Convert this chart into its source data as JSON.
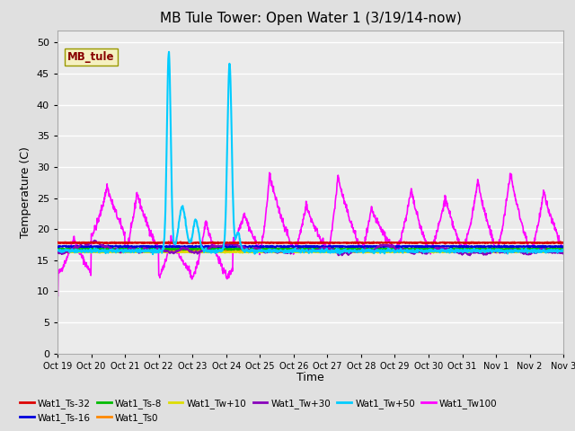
{
  "title": "MB Tule Tower: Open Water 1 (3/19/14-now)",
  "xlabel": "Time",
  "ylabel": "Temperature (C)",
  "ylim": [
    0,
    52
  ],
  "yticks": [
    0,
    5,
    10,
    15,
    20,
    25,
    30,
    35,
    40,
    45,
    50
  ],
  "bg_color": "#e0e0e0",
  "plot_bg": "#ebebeb",
  "legend_label": "MB_tule",
  "series": {
    "Wat1_Ts-32": {
      "color": "#dd0000",
      "lw": 1.5
    },
    "Wat1_Ts-16": {
      "color": "#0000dd",
      "lw": 1.5
    },
    "Wat1_Ts-8": {
      "color": "#00bb00",
      "lw": 1.5
    },
    "Wat1_Ts0": {
      "color": "#ff8800",
      "lw": 1.5
    },
    "Wat1_Tw+10": {
      "color": "#dddd00",
      "lw": 1.5
    },
    "Wat1_Tw+30": {
      "color": "#8800bb",
      "lw": 1.5
    },
    "Wat1_Tw+50": {
      "color": "#00ccff",
      "lw": 1.5
    },
    "Wat1_Tw100": {
      "color": "#ff00ff",
      "lw": 1.2
    }
  },
  "xtick_labels": [
    "Oct 19",
    "Oct 20",
    "Oct 21",
    "Oct 22",
    "Oct 23",
    "Oct 24",
    "Oct 25",
    "Oct 26",
    "Oct 27",
    "Oct 28",
    "Oct 29",
    "Oct 30",
    "Oct 31",
    "Nov 1",
    "Nov 2",
    "Nov 3"
  ],
  "n_points": 1440,
  "days": 15
}
